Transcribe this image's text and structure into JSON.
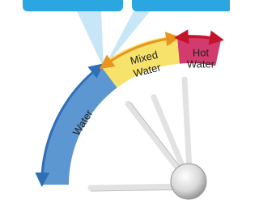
{
  "zones": [
    {
      "lines": [
        "Water"
      ]
    },
    {
      "lines": [
        "Mixed",
        "Water"
      ]
    },
    {
      "lines": [
        "Hot",
        "Water"
      ]
    }
  ]
}
